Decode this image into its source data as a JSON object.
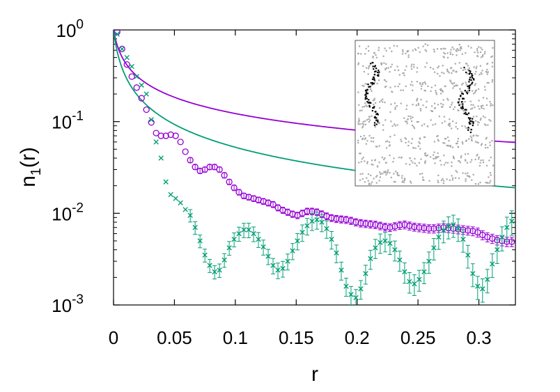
{
  "chart_data": {
    "type": "scatter",
    "title": "",
    "xlabel": "r",
    "ylabel_base": "n",
    "ylabel_sub": "1",
    "ylabel_arg": "(r)",
    "xscale": "linear",
    "yscale": "log",
    "xlim": [
      0,
      0.33
    ],
    "ylim": [
      0.001,
      1
    ],
    "x_ticks": [
      {
        "value": 0,
        "label": "0"
      },
      {
        "value": 0.05,
        "label": "0.05"
      },
      {
        "value": 0.1,
        "label": "0.1"
      },
      {
        "value": 0.15,
        "label": "0.15"
      },
      {
        "value": 0.2,
        "label": "0.2"
      },
      {
        "value": 0.25,
        "label": "0.25"
      },
      {
        "value": 0.3,
        "label": "0.3"
      }
    ],
    "y_ticks": [
      {
        "value": 1,
        "base": "10",
        "exp": "0"
      },
      {
        "value": 0.1,
        "base": "10",
        "exp": "-1"
      },
      {
        "value": 0.01,
        "base": "10",
        "exp": "-2"
      },
      {
        "value": 0.001,
        "base": "10",
        "exp": "-3"
      }
    ],
    "series": [
      {
        "name": "purple circles",
        "marker": "circle",
        "color": "#9400d3",
        "points": [
          [
            0.003,
            0.95
          ],
          [
            0.007,
            0.62
          ],
          [
            0.011,
            0.42
          ],
          [
            0.015,
            0.31
          ],
          [
            0.019,
            0.235
          ],
          [
            0.023,
            0.18
          ],
          [
            0.027,
            0.135
          ],
          [
            0.031,
            0.098
          ],
          [
            0.035,
            0.075
          ],
          [
            0.039,
            0.07
          ],
          [
            0.043,
            0.07
          ],
          [
            0.047,
            0.072
          ],
          [
            0.051,
            0.07
          ],
          [
            0.055,
            0.06
          ],
          [
            0.059,
            0.047
          ],
          [
            0.063,
            0.038
          ],
          [
            0.067,
            0.032
          ],
          [
            0.071,
            0.029
          ],
          [
            0.075,
            0.03
          ],
          [
            0.079,
            0.032
          ],
          [
            0.083,
            0.032
          ],
          [
            0.087,
            0.03
          ],
          [
            0.091,
            0.026
          ],
          [
            0.095,
            0.022
          ],
          [
            0.099,
            0.019
          ],
          [
            0.103,
            0.017
          ],
          [
            0.107,
            0.0155
          ],
          [
            0.111,
            0.015
          ],
          [
            0.115,
            0.0145
          ],
          [
            0.119,
            0.014
          ],
          [
            0.123,
            0.0135
          ],
          [
            0.127,
            0.013
          ],
          [
            0.131,
            0.0125
          ],
          [
            0.135,
            0.0115
          ],
          [
            0.139,
            0.0108
          ],
          [
            0.143,
            0.0103
          ],
          [
            0.147,
            0.0098
          ],
          [
            0.151,
            0.0095
          ],
          [
            0.155,
            0.01
          ],
          [
            0.159,
            0.0105
          ],
          [
            0.163,
            0.0105
          ],
          [
            0.167,
            0.0103
          ],
          [
            0.171,
            0.0098
          ],
          [
            0.175,
            0.0093
          ],
          [
            0.179,
            0.0089
          ],
          [
            0.183,
            0.0087
          ],
          [
            0.187,
            0.0086
          ],
          [
            0.191,
            0.0085
          ],
          [
            0.195,
            0.0083
          ],
          [
            0.199,
            0.008
          ],
          [
            0.203,
            0.0078
          ],
          [
            0.207,
            0.0077
          ],
          [
            0.211,
            0.0076
          ],
          [
            0.215,
            0.0075
          ],
          [
            0.219,
            0.0073
          ],
          [
            0.223,
            0.0071
          ],
          [
            0.227,
            0.007
          ],
          [
            0.231,
            0.0072
          ],
          [
            0.235,
            0.0074
          ],
          [
            0.239,
            0.0075
          ],
          [
            0.243,
            0.0073
          ],
          [
            0.247,
            0.0071
          ],
          [
            0.251,
            0.007
          ],
          [
            0.255,
            0.0069
          ],
          [
            0.259,
            0.0068
          ],
          [
            0.263,
            0.0068
          ],
          [
            0.267,
            0.0069
          ],
          [
            0.271,
            0.007
          ],
          [
            0.275,
            0.0069
          ],
          [
            0.279,
            0.0068
          ],
          [
            0.283,
            0.0067
          ],
          [
            0.287,
            0.0066
          ],
          [
            0.291,
            0.0065
          ],
          [
            0.295,
            0.0064
          ],
          [
            0.299,
            0.0062
          ],
          [
            0.303,
            0.0058
          ],
          [
            0.307,
            0.0055
          ],
          [
            0.311,
            0.0053
          ],
          [
            0.315,
            0.0051
          ],
          [
            0.319,
            0.005
          ],
          [
            0.323,
            0.0049
          ],
          [
            0.327,
            0.0049
          ]
        ],
        "error_frac": 0.12
      },
      {
        "name": "green crosses",
        "marker": "cross",
        "color": "#009e73",
        "points": [
          [
            0.003,
            0.9
          ],
          [
            0.007,
            0.62
          ],
          [
            0.011,
            0.5
          ],
          [
            0.015,
            0.4
          ],
          [
            0.019,
            0.31
          ],
          [
            0.023,
            0.25
          ],
          [
            0.027,
            0.2
          ],
          [
            0.031,
            0.105
          ],
          [
            0.035,
            0.06
          ],
          [
            0.039,
            0.04
          ],
          [
            0.043,
            0.022
          ],
          [
            0.047,
            0.016
          ],
          [
            0.051,
            0.0145
          ],
          [
            0.055,
            0.013
          ],
          [
            0.059,
            0.011
          ],
          [
            0.063,
            0.0095
          ],
          [
            0.067,
            0.007
          ],
          [
            0.071,
            0.005
          ],
          [
            0.075,
            0.0035
          ],
          [
            0.079,
            0.0027
          ],
          [
            0.083,
            0.0023
          ],
          [
            0.087,
            0.0024
          ],
          [
            0.091,
            0.0031
          ],
          [
            0.095,
            0.0042
          ],
          [
            0.099,
            0.0052
          ],
          [
            0.103,
            0.006
          ],
          [
            0.107,
            0.0066
          ],
          [
            0.111,
            0.0066
          ],
          [
            0.115,
            0.006
          ],
          [
            0.119,
            0.0052
          ],
          [
            0.123,
            0.0043
          ],
          [
            0.127,
            0.0034
          ],
          [
            0.131,
            0.0027
          ],
          [
            0.135,
            0.0024
          ],
          [
            0.139,
            0.0025
          ],
          [
            0.143,
            0.003
          ],
          [
            0.147,
            0.0039
          ],
          [
            0.151,
            0.005
          ],
          [
            0.155,
            0.0062
          ],
          [
            0.159,
            0.0073
          ],
          [
            0.163,
            0.0082
          ],
          [
            0.167,
            0.0085
          ],
          [
            0.171,
            0.008
          ],
          [
            0.175,
            0.0068
          ],
          [
            0.179,
            0.0052
          ],
          [
            0.183,
            0.0037
          ],
          [
            0.187,
            0.0024
          ],
          [
            0.191,
            0.0016
          ],
          [
            0.195,
            0.0013
          ],
          [
            0.199,
            0.0012
          ],
          [
            0.203,
            0.0015
          ],
          [
            0.207,
            0.0022
          ],
          [
            0.211,
            0.0032
          ],
          [
            0.215,
            0.0042
          ],
          [
            0.219,
            0.0048
          ],
          [
            0.223,
            0.005
          ],
          [
            0.227,
            0.0047
          ],
          [
            0.231,
            0.004
          ],
          [
            0.235,
            0.0031
          ],
          [
            0.239,
            0.0023
          ],
          [
            0.243,
            0.0018
          ],
          [
            0.247,
            0.0017
          ],
          [
            0.251,
            0.0019
          ],
          [
            0.255,
            0.0023
          ],
          [
            0.259,
            0.003
          ],
          [
            0.263,
            0.0042
          ],
          [
            0.267,
            0.0055
          ],
          [
            0.271,
            0.0065
          ],
          [
            0.275,
            0.0072
          ],
          [
            0.279,
            0.0075
          ],
          [
            0.283,
            0.0068
          ],
          [
            0.287,
            0.0052
          ],
          [
            0.291,
            0.0035
          ],
          [
            0.295,
            0.0022
          ],
          [
            0.299,
            0.0016
          ],
          [
            0.303,
            0.0015
          ],
          [
            0.307,
            0.0019
          ],
          [
            0.311,
            0.0028
          ],
          [
            0.315,
            0.004
          ],
          [
            0.319,
            0.0055
          ],
          [
            0.323,
            0.007
          ],
          [
            0.327,
            0.0082
          ]
        ],
        "error_frac": 0.3
      }
    ],
    "fit_lines": [
      {
        "name": "purple fit",
        "color": "#9400d3",
        "r0": 0.0035,
        "alpha": 0.62
      },
      {
        "name": "green fit",
        "color": "#009e73",
        "r0": 0.0035,
        "alpha": 0.87
      }
    ],
    "inset": {
      "description_colors": {
        "background_points": "#aaaaaa",
        "highlight_points": "#000000"
      }
    }
  }
}
